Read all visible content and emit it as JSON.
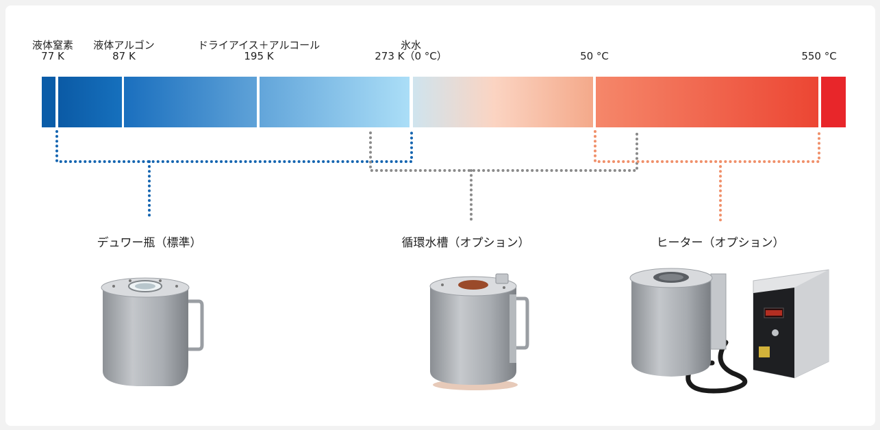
{
  "markers": [
    {
      "name": "液体窒素",
      "value": "77 K"
    },
    {
      "name": "液体アルゴン",
      "value": "87 K"
    },
    {
      "name": "ドライアイス＋アルコール",
      "value": "195 K"
    },
    {
      "name": "氷水",
      "value": "273 K（0 °C）"
    },
    {
      "name": "",
      "value": "50 °C"
    },
    {
      "name": "",
      "value": "550 °C"
    }
  ],
  "equipment": [
    {
      "title": "デュワー瓶（標準）",
      "icon": "dewar-icon"
    },
    {
      "title": "循環水槽（オプション）",
      "icon": "circulating-bath-icon"
    },
    {
      "title": "ヒーター（オプション）",
      "icon": "heater-icon"
    }
  ],
  "colors": {
    "cold_dark": "#0a5ca8",
    "cold_light": "#a9dcf6",
    "warm_light": "#fbd0bd",
    "hot": "#e8262a",
    "dewar_dots": "#1565b0",
    "bath_dots": "#8a8a8a",
    "heater_dots": "#f0906a"
  }
}
